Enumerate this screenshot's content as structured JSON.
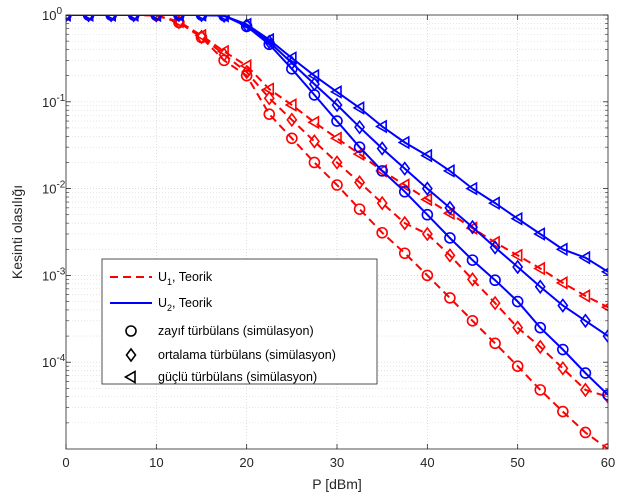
{
  "chart_data": {
    "type": "line",
    "xlabel": "P [dBm]",
    "ylabel": "Kesinti olasılığı",
    "xlim": [
      0,
      60
    ],
    "ylim": [
      1e-05,
      1
    ],
    "yscale": "log",
    "grid": true,
    "x_ticks": [
      0,
      10,
      20,
      30,
      40,
      50,
      60
    ],
    "y_ticks": [
      {
        "value": 0.0001,
        "base": "10",
        "exp": "-4"
      },
      {
        "value": 0.001,
        "base": "10",
        "exp": "-3"
      },
      {
        "value": 0.01,
        "base": "10",
        "exp": "-2"
      },
      {
        "value": 0.1,
        "base": "10",
        "exp": "-1"
      },
      {
        "value": 1,
        "base": "10",
        "exp": "0"
      }
    ],
    "colors": {
      "U1": "#ff0000",
      "U2": "#0000ff"
    },
    "series": [
      {
        "user": "U1",
        "marker": "circle",
        "line_style": "dashed",
        "x": [
          0,
          2.5,
          5,
          7.5,
          10,
          12.5,
          15,
          17.5,
          20,
          22.5,
          25,
          27.5,
          30,
          32.5,
          35,
          37.5,
          40,
          42.5,
          45,
          47.5,
          50,
          52.5,
          55,
          57.5,
          60
        ],
        "values": [
          1.0,
          1.0,
          1.0,
          1.0,
          0.99,
          0.82,
          0.55,
          0.3,
          0.2,
          0.072,
          0.038,
          0.02,
          0.011,
          0.0058,
          0.0031,
          0.0018,
          0.001,
          0.00055,
          0.0003,
          0.000165,
          9e-05,
          4.8e-05,
          2.7e-05,
          1.55e-05,
          8.5e-06
        ]
      },
      {
        "user": "U1",
        "marker": "diamond",
        "line_style": "dashed",
        "x": [
          0,
          2.5,
          5,
          7.5,
          10,
          12.5,
          15,
          17.5,
          20,
          22.5,
          25,
          27.5,
          30,
          32.5,
          35,
          37.5,
          40,
          42.5,
          45,
          47.5,
          50,
          52.5,
          55,
          57.5,
          60
        ],
        "values": [
          1.0,
          1.0,
          1.0,
          1.0,
          0.99,
          0.83,
          0.56,
          0.35,
          0.22,
          0.11,
          0.062,
          0.035,
          0.02,
          0.0118,
          0.0068,
          0.004,
          0.003,
          0.0017,
          0.0009,
          0.00048,
          0.00025,
          0.00015,
          8.5e-05,
          4.8e-05,
          4e-05
        ]
      },
      {
        "user": "U1",
        "marker": "triangle-left",
        "line_style": "dashed",
        "x": [
          0,
          2.5,
          5,
          7.5,
          10,
          12.5,
          15,
          17.5,
          20,
          22.5,
          25,
          27.5,
          30,
          32.5,
          35,
          37.5,
          40,
          42.5,
          45,
          47.5,
          50,
          52.5,
          55,
          57.5,
          60
        ],
        "values": [
          1.0,
          1.0,
          1.0,
          1.0,
          0.99,
          0.84,
          0.58,
          0.38,
          0.26,
          0.14,
          0.092,
          0.058,
          0.038,
          0.025,
          0.016,
          0.011,
          0.0075,
          0.0052,
          0.0035,
          0.0024,
          0.0017,
          0.0012,
          0.00082,
          0.00058,
          0.00043
        ]
      },
      {
        "user": "U2",
        "marker": "circle",
        "line_style": "solid",
        "x": [
          0,
          2.5,
          5,
          7.5,
          10,
          12.5,
          15,
          17.5,
          20,
          22.5,
          25,
          27.5,
          30,
          32.5,
          35,
          37.5,
          40,
          42.5,
          45,
          47.5,
          50,
          52.5,
          55,
          57.5,
          60
        ],
        "values": [
          1.0,
          1.0,
          1.0,
          1.0,
          1.0,
          1.0,
          1.0,
          0.98,
          0.74,
          0.46,
          0.24,
          0.12,
          0.06,
          0.03,
          0.016,
          0.0092,
          0.005,
          0.0027,
          0.0015,
          0.00088,
          0.0005,
          0.00025,
          0.00014,
          7.5e-05,
          4.2e-05
        ]
      },
      {
        "user": "U2",
        "marker": "diamond",
        "line_style": "solid",
        "x": [
          0,
          2.5,
          5,
          7.5,
          10,
          12.5,
          15,
          17.5,
          20,
          22.5,
          25,
          27.5,
          30,
          32.5,
          35,
          37.5,
          40,
          42.5,
          45,
          47.5,
          50,
          52.5,
          55,
          57.5,
          60
        ],
        "values": [
          1.0,
          1.0,
          1.0,
          1.0,
          1.0,
          1.0,
          1.0,
          0.98,
          0.76,
          0.49,
          0.28,
          0.16,
          0.092,
          0.051,
          0.029,
          0.017,
          0.01,
          0.006,
          0.0036,
          0.0021,
          0.00125,
          0.00074,
          0.00045,
          0.0003,
          0.0002
        ]
      },
      {
        "user": "U2",
        "marker": "triangle-left",
        "line_style": "solid",
        "x": [
          0,
          2.5,
          5,
          7.5,
          10,
          12.5,
          15,
          17.5,
          20,
          22.5,
          25,
          27.5,
          30,
          32.5,
          35,
          37.5,
          40,
          42.5,
          45,
          47.5,
          50,
          52.5,
          55,
          57.5,
          60
        ],
        "values": [
          1.0,
          1.0,
          1.0,
          1.0,
          1.0,
          1.0,
          1.0,
          0.98,
          0.78,
          0.52,
          0.32,
          0.2,
          0.13,
          0.085,
          0.052,
          0.034,
          0.024,
          0.016,
          0.01,
          0.0068,
          0.0045,
          0.003,
          0.002,
          0.0016,
          0.0011
        ]
      }
    ],
    "legend": {
      "position": "lower-left",
      "entries": [
        {
          "kind": "line",
          "style": "dashed",
          "color": "#ff0000",
          "user": "U",
          "sub": "1",
          "text": ", Teorik"
        },
        {
          "kind": "line",
          "style": "solid",
          "color": "#0000ff",
          "user": "U",
          "sub": "2",
          "text": ", Teorik"
        },
        {
          "kind": "marker",
          "marker": "circle",
          "text": "zayıf türbülans (simülasyon)"
        },
        {
          "kind": "marker",
          "marker": "diamond",
          "text": "ortalama türbülans (simülasyon)"
        },
        {
          "kind": "marker",
          "marker": "triangle-left",
          "text": "güçlü türbülans (simülasyon)"
        }
      ]
    }
  }
}
